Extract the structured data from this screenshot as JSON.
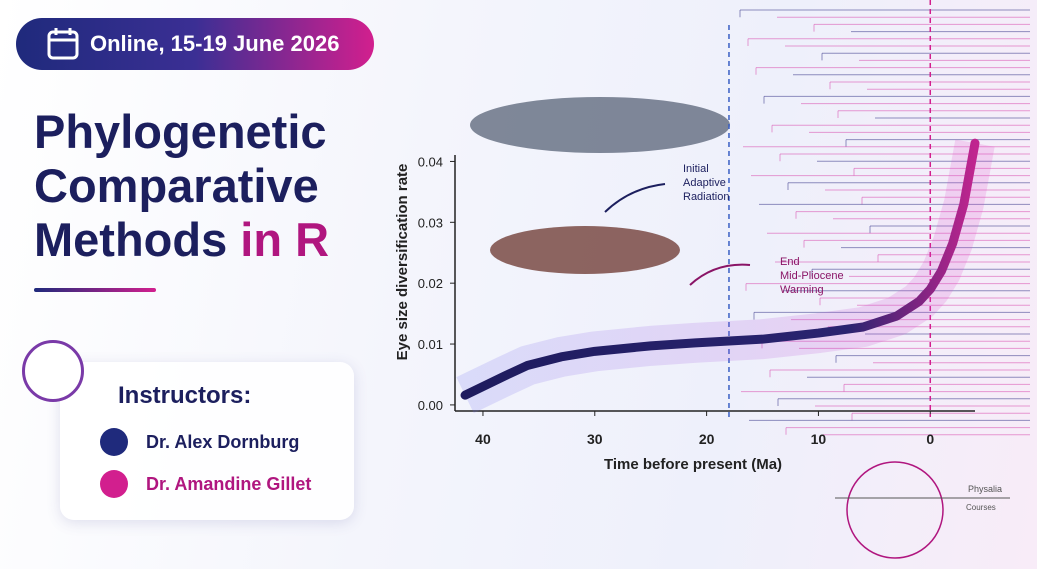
{
  "header": {
    "date": "Online, 15-19 June 2026",
    "title_lines": [
      "Phylogenetic",
      "Comparative",
      "Methods"
    ],
    "title_accent": "in R"
  },
  "instructors": {
    "heading": "Instructors:",
    "names": [
      "Dr. Alex Dornburg",
      "Dr. Amandine Gillet"
    ]
  },
  "logo": {
    "name": "Physalia",
    "sub": "Courses"
  },
  "chart_data": {
    "type": "line",
    "xlabel": "Time before present (Ma)",
    "ylabel": "Eye size diversification rate",
    "xlim": [
      42.5,
      -4
    ],
    "xticks": [
      40,
      30,
      20,
      10,
      0
    ],
    "ylim": [
      -0.001,
      0.045
    ],
    "yticks": [
      {
        "value": 0,
        "label": "0.00"
      },
      {
        "value": 0.01,
        "label": "0.01"
      },
      {
        "value": 0.02,
        "label": "0.02"
      },
      {
        "value": 0.03,
        "label": "0.03"
      },
      {
        "value": 0.04,
        "label": "0.04"
      }
    ],
    "reference_lines": [
      18,
      0
    ],
    "annotations": [
      "Initial\nAdaptive\nRadiation",
      "End\nMid-Pliocene\nWarming"
    ],
    "series": [
      {
        "name": "Eye size diversification rate",
        "color": "#1e1b5e",
        "x": [
          41.6,
          38,
          36,
          33,
          30,
          25,
          21,
          15,
          10,
          6,
          3,
          1,
          0,
          -1,
          -2,
          -3,
          -3.5,
          -4
        ],
        "values": [
          0.0016,
          0.0048,
          0.0065,
          0.0079,
          0.0088,
          0.0097,
          0.0102,
          0.0108,
          0.0118,
          0.0128,
          0.0146,
          0.017,
          0.019,
          0.022,
          0.0265,
          0.033,
          0.038,
          0.043
        ]
      }
    ]
  }
}
